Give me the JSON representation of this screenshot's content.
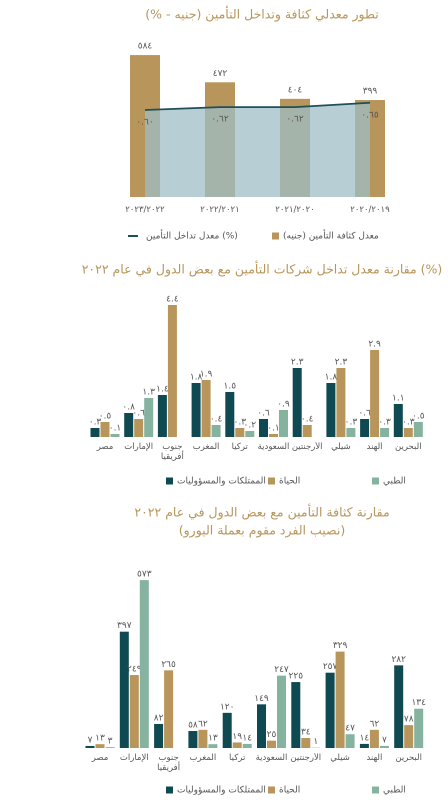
{
  "chart_data": [
    {
      "type": "combo",
      "title": "تطور معدلي كثافة وتداخل التأمين (جنيه - %)",
      "categories": [
        "٢٠٢٣/٢٠٢٢",
        "٢٠٢٢/٢٠٢١",
        "٢٠٢١/٢٠٢٠",
        "٢٠٢٠/٢٠١٩"
      ],
      "series": [
        {
          "name": "معدل كثافة التأمين (جنيه)",
          "color": "#b8955a",
          "values": [
            584,
            472,
            404,
            399
          ],
          "value_labels": [
            "٥٨٤",
            "٤٧٢",
            "٤٠٤",
            "٣٩٩"
          ]
        },
        {
          "name": "معدل تداخل التأمين (%)",
          "color": "#1f4f5a",
          "axis": "y2",
          "values": [
            0.6,
            0.62,
            0.62,
            0.65
          ],
          "value_labels": [
            "٠.٦٠",
            "٠.٦٢",
            "٠.٦٢",
            "٠.٦٥"
          ]
        }
      ]
    },
    {
      "type": "grouped_bar",
      "title": "مقارنة معدل تداخل شركات التأمين مع بعض الدول في عام ٢٠٢٢ (%)",
      "categories": [
        "مصر",
        "الإمارات",
        "جنوب أفريقيا",
        "المغرب",
        "تركيا",
        "السعودية",
        "الأرجنتين",
        "شيلي",
        "الهند",
        "البحرين"
      ],
      "series": [
        {
          "name": "الممتلكات والمسؤوليات",
          "color": "#0f4a52",
          "values": [
            0.3,
            0.8,
            1.4,
            1.8,
            1.5,
            0.6,
            2.3,
            1.8,
            0.6,
            1.1
          ],
          "value_labels": [
            "٠.٣",
            "٠.٨",
            "١.٤",
            "١.٨",
            "١.٥",
            "٠.٦",
            "٢.٣",
            "١.٨",
            "٠.٦",
            "١.١"
          ]
        },
        {
          "name": "الحياة",
          "color": "#b8955a",
          "values": [
            0.5,
            0.6,
            4.4,
            1.9,
            0.3,
            0.1,
            0.4,
            2.3,
            2.9,
            0.3
          ],
          "value_labels": [
            "٠.٥",
            "٠.٦",
            "٤.٤",
            "١.٩",
            "٠.٣",
            "٠.١",
            "٠.٤",
            "٢.٣",
            "٢.٩",
            "٠.٣"
          ]
        },
        {
          "name": "الطبي",
          "color": "#86b3a0",
          "values": [
            0.1,
            1.3,
            null,
            0.4,
            0.2,
            0.9,
            null,
            0.3,
            0.3,
            0.5
          ],
          "value_labels": [
            "٠.١",
            "١.٣",
            null,
            "٠.٤",
            "٠.٢",
            "٠.٩",
            null,
            "٠.٣",
            "٠.٣",
            "٠.٥"
          ]
        }
      ]
    },
    {
      "type": "grouped_bar",
      "title": "مقارنة كثافة التأمين مع بعض الدول في عام ٢٠٢٢",
      "subtitle": "(نصيب الفرد مقوم بعملة اليورو)",
      "categories": [
        "مصر",
        "الإمارات",
        "جنوب أفريقيا",
        "المغرب",
        "تركيا",
        "السعودية",
        "الأرجنتين",
        "شيلي",
        "الهند",
        "البحرين"
      ],
      "series": [
        {
          "name": "الممتلكات والمسؤوليات",
          "color": "#0f4a52",
          "values": [
            7,
            397,
            82,
            58,
            120,
            149,
            225,
            257,
            14,
            282
          ],
          "value_labels": [
            "٧",
            "٣٩٧",
            "٨٢",
            "٥٨",
            "١٢٠",
            "١٤٩",
            "٢٢٥",
            "٢٥٧",
            "١٤",
            "٢٨٢"
          ]
        },
        {
          "name": "الحياة",
          "color": "#b8955a",
          "values": [
            13,
            249,
            265,
            62,
            19,
            25,
            34,
            329,
            62,
            78
          ],
          "value_labels": [
            "١٣",
            "٢٤٩",
            "٢٦٥",
            "٦٢",
            "١٩",
            "٢٥",
            "٣٤",
            "٣٢٩",
            "٦٢",
            "٧٨"
          ]
        },
        {
          "name": "الطبي",
          "color": "#86b3a0",
          "values": [
            3,
            573,
            null,
            13,
            14,
            247,
            1,
            47,
            7,
            134
          ],
          "value_labels": [
            "٣",
            "٥٧٣",
            null,
            "١٣",
            "١٤",
            "٢٤٧",
            "١",
            "٤٧",
            "٧",
            "١٣٤"
          ]
        }
      ]
    }
  ]
}
